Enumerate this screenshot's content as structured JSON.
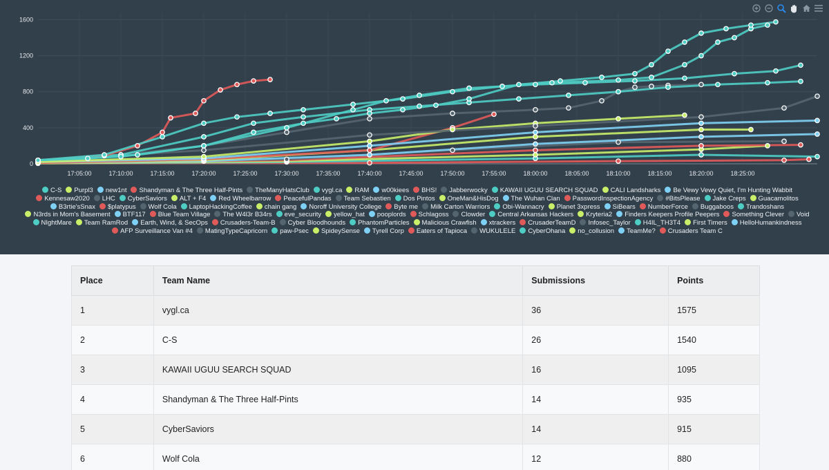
{
  "chart_data": {
    "type": "line",
    "title": "",
    "xlabel": "",
    "ylabel": "",
    "x_ticks": [
      "17:05:00",
      "17:10:00",
      "17:15:00",
      "17:20:00",
      "17:25:00",
      "17:30:00",
      "17:35:00",
      "17:40:00",
      "17:45:00",
      "17:50:00",
      "17:55:00",
      "18:00:00",
      "18:05:00",
      "18:10:00",
      "18:15:00",
      "18:20:00",
      "18:25:00"
    ],
    "x_range_minutes": [
      0,
      94
    ],
    "y_ticks": [
      0,
      400,
      800,
      1200,
      1600
    ],
    "ylim": [
      0,
      1680
    ],
    "grid": true,
    "legend": "bottom",
    "series": [
      {
        "name": "vygl.ca",
        "color": "#4ecdc4",
        "points": [
          [
            0,
            40
          ],
          [
            6,
            60
          ],
          [
            12,
            100
          ],
          [
            20,
            200
          ],
          [
            26,
            350
          ],
          [
            32,
            450
          ],
          [
            36,
            500
          ],
          [
            40,
            560
          ],
          [
            44,
            600
          ],
          [
            48,
            650
          ],
          [
            52,
            720
          ],
          [
            58,
            880
          ],
          [
            63,
            920
          ],
          [
            68,
            960
          ],
          [
            72,
            1000
          ],
          [
            74,
            1100
          ],
          [
            76,
            1250
          ],
          [
            78,
            1350
          ],
          [
            80,
            1450
          ],
          [
            83,
            1500
          ],
          [
            86,
            1540
          ],
          [
            89,
            1575
          ]
        ]
      },
      {
        "name": "C-S",
        "color": "#4ecdc4",
        "points": [
          [
            0,
            40
          ],
          [
            8,
            100
          ],
          [
            15,
            300
          ],
          [
            20,
            450
          ],
          [
            24,
            520
          ],
          [
            28,
            560
          ],
          [
            32,
            600
          ],
          [
            38,
            660
          ],
          [
            44,
            720
          ],
          [
            50,
            800
          ],
          [
            56,
            860
          ],
          [
            62,
            900
          ],
          [
            70,
            930
          ],
          [
            74,
            960
          ],
          [
            78,
            1100
          ],
          [
            80,
            1200
          ],
          [
            82,
            1350
          ],
          [
            84,
            1400
          ],
          [
            86,
            1500
          ],
          [
            88,
            1540
          ]
        ]
      },
      {
        "name": "KAWAII UGUU SEARCH SQUAD",
        "color": "#4ecdc4",
        "points": [
          [
            0,
            40
          ],
          [
            10,
            80
          ],
          [
            20,
            200
          ],
          [
            30,
            400
          ],
          [
            38,
            600
          ],
          [
            42,
            700
          ],
          [
            46,
            760
          ],
          [
            52,
            840
          ],
          [
            60,
            880
          ],
          [
            66,
            900
          ],
          [
            72,
            920
          ],
          [
            78,
            950
          ],
          [
            84,
            1000
          ],
          [
            89,
            1030
          ],
          [
            92,
            1095
          ]
        ]
      },
      {
        "name": "Shandyman & The Three Half-Pints",
        "color": "#e05a5a",
        "points": [
          [
            0,
            40
          ],
          [
            8,
            90
          ],
          [
            12,
            200
          ],
          [
            15,
            350
          ],
          [
            16,
            510
          ],
          [
            19,
            560
          ],
          [
            20,
            700
          ],
          [
            22,
            820
          ],
          [
            24,
            880
          ],
          [
            26,
            920
          ],
          [
            28,
            935
          ]
        ]
      },
      {
        "name": "CyberSaviors",
        "color": "#4ecdc4",
        "points": [
          [
            0,
            40
          ],
          [
            10,
            100
          ],
          [
            20,
            300
          ],
          [
            26,
            450
          ],
          [
            32,
            520
          ],
          [
            40,
            600
          ],
          [
            46,
            640
          ],
          [
            52,
            680
          ],
          [
            58,
            720
          ],
          [
            64,
            760
          ],
          [
            70,
            800
          ],
          [
            76,
            850
          ],
          [
            82,
            880
          ],
          [
            88,
            900
          ],
          [
            92,
            915
          ]
        ]
      },
      {
        "name": "Wolf Cola",
        "color": "#55656f",
        "points": [
          [
            0,
            40
          ],
          [
            10,
            100
          ],
          [
            20,
            200
          ],
          [
            30,
            350
          ],
          [
            40,
            500
          ],
          [
            50,
            560
          ],
          [
            60,
            600
          ],
          [
            64,
            620
          ],
          [
            68,
            700
          ],
          [
            70,
            800
          ],
          [
            72,
            850
          ],
          [
            74,
            860
          ],
          [
            76,
            870
          ],
          [
            80,
            880
          ]
        ]
      },
      {
        "name": "LHC",
        "color": "#55656f",
        "points": [
          [
            0,
            40
          ],
          [
            20,
            150
          ],
          [
            40,
            320
          ],
          [
            60,
            420
          ],
          [
            80,
            520
          ],
          [
            90,
            620
          ],
          [
            94,
            750
          ]
        ]
      },
      {
        "name": "RAM",
        "color": "#c8ee6a",
        "points": [
          [
            0,
            20
          ],
          [
            20,
            80
          ],
          [
            40,
            250
          ],
          [
            50,
            380
          ],
          [
            60,
            450
          ],
          [
            70,
            500
          ],
          [
            78,
            540
          ]
        ]
      },
      {
        "name": "Be Vewy Vewy Quiet, I'm Hunting Wabbit",
        "color": "#7fd0f5",
        "points": [
          [
            0,
            20
          ],
          [
            20,
            60
          ],
          [
            40,
            200
          ],
          [
            60,
            350
          ],
          [
            80,
            450
          ],
          [
            94,
            480
          ]
        ]
      },
      {
        "name": "Byte me",
        "color": "#e05a5a",
        "points": [
          [
            0,
            10
          ],
          [
            20,
            50
          ],
          [
            40,
            150
          ],
          [
            50,
            400
          ],
          [
            55,
            550
          ]
        ]
      },
      {
        "name": "Purpl3",
        "color": "#c8ee6a",
        "points": [
          [
            0,
            10
          ],
          [
            20,
            40
          ],
          [
            40,
            150
          ],
          [
            60,
            300
          ],
          [
            80,
            380
          ],
          [
            86,
            380
          ]
        ]
      },
      {
        "name": "new1nt",
        "color": "#7fd0f5",
        "points": [
          [
            0,
            10
          ],
          [
            20,
            30
          ],
          [
            40,
            100
          ],
          [
            60,
            220
          ],
          [
            80,
            300
          ],
          [
            94,
            330
          ]
        ]
      },
      {
        "name": "Team Sebastien",
        "color": "#55656f",
        "points": [
          [
            0,
            10
          ],
          [
            30,
            50
          ],
          [
            50,
            150
          ],
          [
            70,
            240
          ],
          [
            90,
            250
          ]
        ]
      },
      {
        "name": "Kennesaw2020",
        "color": "#e05a5a",
        "points": [
          [
            0,
            10
          ],
          [
            30,
            40
          ],
          [
            60,
            150
          ],
          [
            80,
            200
          ],
          [
            92,
            210
          ]
        ]
      },
      {
        "name": "CALI Landsharks",
        "color": "#c8ee6a",
        "points": [
          [
            0,
            5
          ],
          [
            30,
            30
          ],
          [
            60,
            100
          ],
          [
            80,
            160
          ],
          [
            88,
            200
          ]
        ]
      },
      {
        "name": "paw-Psec",
        "color": "#4ecdc4",
        "points": [
          [
            0,
            5
          ],
          [
            30,
            20
          ],
          [
            60,
            60
          ],
          [
            80,
            100
          ],
          [
            94,
            80
          ]
        ]
      },
      {
        "name": "Crusaders Team C",
        "color": "#e05a5a",
        "points": [
          [
            0,
            5
          ],
          [
            40,
            10
          ],
          [
            70,
            30
          ],
          [
            90,
            40
          ],
          [
            93,
            50
          ]
        ]
      }
    ],
    "legend_entries": [
      {
        "name": "C-S",
        "color": "#4ecdc4"
      },
      {
        "name": "Purpl3",
        "color": "#c8ee6a"
      },
      {
        "name": "new1nt",
        "color": "#7fd0f5"
      },
      {
        "name": "Shandyman & The Three Half-Pints",
        "color": "#e05a5a"
      },
      {
        "name": "TheManyHatsClub",
        "color": "#55656f"
      },
      {
        "name": "vygl.ca",
        "color": "#4ecdc4"
      },
      {
        "name": "RAM",
        "color": "#c8ee6a"
      },
      {
        "name": "w00kiees",
        "color": "#7fd0f5"
      },
      {
        "name": "BHS!",
        "color": "#e05a5a"
      },
      {
        "name": "Jabberwocky",
        "color": "#55656f"
      },
      {
        "name": "KAWAII UGUU SEARCH SQUAD",
        "color": "#4ecdc4"
      },
      {
        "name": "CALI Landsharks",
        "color": "#c8ee6a"
      },
      {
        "name": "Be Vewy Vewy Quiet, I'm Hunting Wabbit",
        "color": "#7fd0f5"
      },
      {
        "name": "Kennesaw2020",
        "color": "#e05a5a"
      },
      {
        "name": "LHC",
        "color": "#55656f"
      },
      {
        "name": "CyberSaviors",
        "color": "#4ecdc4"
      },
      {
        "name": "ALT + F4",
        "color": "#c8ee6a"
      },
      {
        "name": "Red Wheelbarrow",
        "color": "#7fd0f5"
      },
      {
        "name": "PeacefulPandas",
        "color": "#e05a5a"
      },
      {
        "name": "Team Sebastien",
        "color": "#55656f"
      },
      {
        "name": "Dos Pintos",
        "color": "#4ecdc4"
      },
      {
        "name": "OneMan&HisDog",
        "color": "#c8ee6a"
      },
      {
        "name": "The Wuhan Clan",
        "color": "#7fd0f5"
      },
      {
        "name": "PasswordInspectionAgency",
        "color": "#e05a5a"
      },
      {
        "name": "#BitsPlease",
        "color": "#55656f"
      },
      {
        "name": "Jake Creps",
        "color": "#4ecdc4"
      },
      {
        "name": "Guacamolitos",
        "color": "#c8ee6a"
      },
      {
        "name": "B3rtie'sSnax",
        "color": "#7fd0f5"
      },
      {
        "name": "$platypus",
        "color": "#e05a5a"
      },
      {
        "name": "Wolf Cola",
        "color": "#55656f"
      },
      {
        "name": "LaptopHackingCoffee",
        "color": "#4ecdc4"
      },
      {
        "name": "chain gang",
        "color": "#c8ee6a"
      },
      {
        "name": "Noroff University College",
        "color": "#7fd0f5"
      },
      {
        "name": "Byte me",
        "color": "#e05a5a"
      },
      {
        "name": "Milk Carton Warriors",
        "color": "#55656f"
      },
      {
        "name": "Obi-Wannacry",
        "color": "#4ecdc4"
      },
      {
        "name": "Planet 3xpress",
        "color": "#c8ee6a"
      },
      {
        "name": "SiBears",
        "color": "#7fd0f5"
      },
      {
        "name": "NumberForce",
        "color": "#e05a5a"
      },
      {
        "name": "Buggaboos",
        "color": "#55656f"
      },
      {
        "name": "Trandoshans",
        "color": "#4ecdc4"
      },
      {
        "name": "N3rds in Mom's Basement",
        "color": "#c8ee6a"
      },
      {
        "name": "BTF117",
        "color": "#7fd0f5"
      },
      {
        "name": "Blue Team Village",
        "color": "#e05a5a"
      },
      {
        "name": "The W4l3r B34rs",
        "color": "#55656f"
      },
      {
        "name": "eve_security",
        "color": "#4ecdc4"
      },
      {
        "name": "yellow_hat",
        "color": "#c8ee6a"
      },
      {
        "name": "pooplords",
        "color": "#7fd0f5"
      },
      {
        "name": "Schlagoss",
        "color": "#e05a5a"
      },
      {
        "name": "Clowder",
        "color": "#55656f"
      },
      {
        "name": "Central Arkansas Hackers",
        "color": "#4ecdc4"
      },
      {
        "name": "Kryteria2",
        "color": "#c8ee6a"
      },
      {
        "name": "Finders Keepers Profile Peepers",
        "color": "#7fd0f5"
      },
      {
        "name": "Something Clever",
        "color": "#e05a5a"
      },
      {
        "name": "Void",
        "color": "#55656f"
      },
      {
        "name": "NIghtMare",
        "color": "#4ecdc4"
      },
      {
        "name": "Team RamRod",
        "color": "#c8ee6a"
      },
      {
        "name": "Earth, Wind, & SecOps",
        "color": "#7fd0f5"
      },
      {
        "name": "Crusaders-Team-B",
        "color": "#e05a5a"
      },
      {
        "name": "Cyber Bloodhounds",
        "color": "#55656f"
      },
      {
        "name": "PhantomParticles",
        "color": "#4ecdc4"
      },
      {
        "name": "Malicious Crawfish",
        "color": "#c8ee6a"
      },
      {
        "name": "xtrackers",
        "color": "#7fd0f5"
      },
      {
        "name": "CrusaderTeamD",
        "color": "#e05a5a"
      },
      {
        "name": "Infosec_Taylor",
        "color": "#55656f"
      },
      {
        "name": "H4IL_TH3T4",
        "color": "#4ecdc4"
      },
      {
        "name": "First Timers",
        "color": "#c8ee6a"
      },
      {
        "name": "HelloHumankindness",
        "color": "#7fd0f5"
      },
      {
        "name": "AFP Surveillance Van #4",
        "color": "#e05a5a"
      },
      {
        "name": "MatingTypeCapricorn",
        "color": "#55656f"
      },
      {
        "name": "paw-Psec",
        "color": "#4ecdc4"
      },
      {
        "name": "SpideySense",
        "color": "#c8ee6a"
      },
      {
        "name": "Tyrell Corp",
        "color": "#7fd0f5"
      },
      {
        "name": "Eaters of Tapioca",
        "color": "#e05a5a"
      },
      {
        "name": "WUKULELE",
        "color": "#55656f"
      },
      {
        "name": "CyberOhana",
        "color": "#4ecdc4"
      },
      {
        "name": "no_collusion",
        "color": "#c8ee6a"
      },
      {
        "name": "TeamMe?",
        "color": "#7fd0f5"
      },
      {
        "name": "Crusaders Team C",
        "color": "#e05a5a"
      }
    ]
  },
  "toolbar": {
    "icons": [
      "zoom-in-icon",
      "zoom-out-icon",
      "selection-zoom-icon",
      "pan-icon",
      "home-icon",
      "menu-icon"
    ],
    "active_color": "#2a8cf0",
    "icon_color": "#8a97a2"
  },
  "scoreboard": {
    "columns": [
      "Place",
      "Team Name",
      "Submissions",
      "Points"
    ],
    "rows": [
      [
        "1",
        "vygl.ca",
        "36",
        "1575"
      ],
      [
        "2",
        "C-S",
        "26",
        "1540"
      ],
      [
        "3",
        "KAWAII UGUU SEARCH SQUAD",
        "16",
        "1095"
      ],
      [
        "4",
        "Shandyman & The Three Half-Pints",
        "14",
        "935"
      ],
      [
        "5",
        "CyberSaviors",
        "14",
        "915"
      ],
      [
        "6",
        "Wolf Cola",
        "12",
        "880"
      ]
    ]
  }
}
